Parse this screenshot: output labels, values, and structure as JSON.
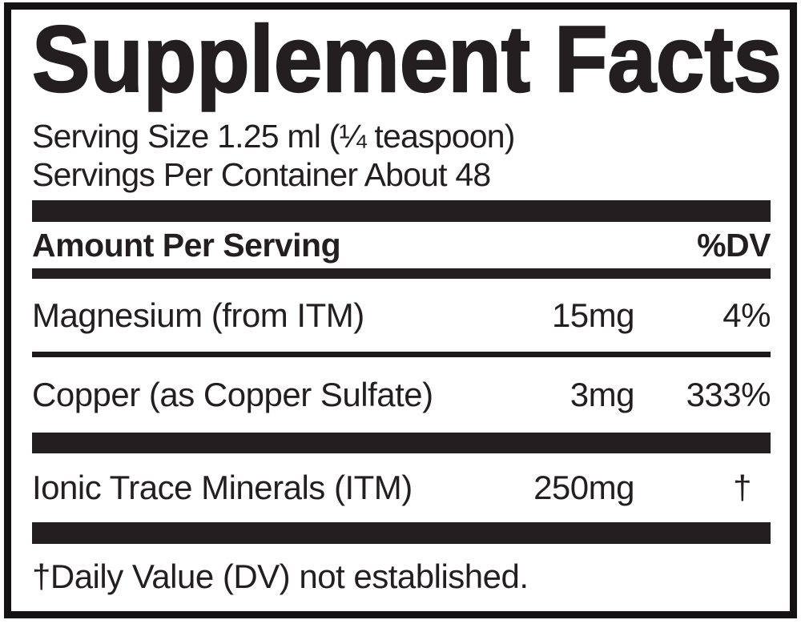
{
  "label": {
    "title": "Supplement Facts",
    "serving": {
      "size_line": "Serving Size 1.25 ml (¼ teaspoon)",
      "per_container_line": "Servings Per Container About 48"
    },
    "header": {
      "amount_label": "Amount Per Serving",
      "dv_label": "%DV"
    },
    "rows": [
      {
        "name": "Magnesium (from ITM)",
        "amount": "15mg",
        "dv": "4%"
      },
      {
        "name": "Copper (as Copper Sulfate)",
        "amount": "3mg",
        "dv": "333%"
      },
      {
        "name": "Ionic Trace Minerals (ITM)",
        "amount": "250mg",
        "dv": "†"
      }
    ],
    "footnote": "†Daily Value (DV) not established.",
    "colors": {
      "ink": "#231f20",
      "bar": "#231f20",
      "border": "#151213",
      "background": "#ffffff"
    }
  }
}
